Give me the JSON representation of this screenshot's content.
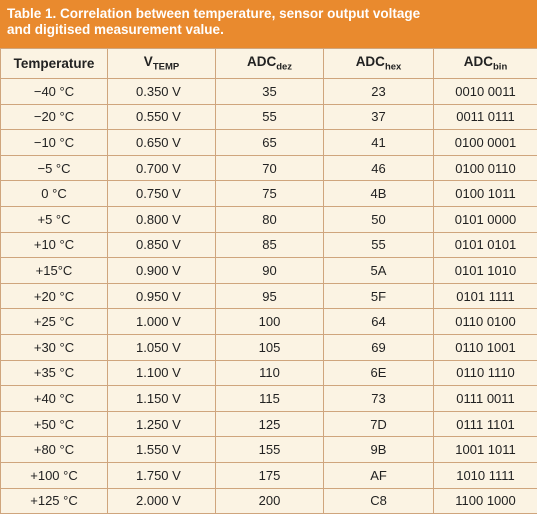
{
  "table": {
    "title": [
      "Table 1. Correlation between temperature, sensor output voltage",
      "and digitised measurement value."
    ],
    "header": [
      {
        "text": "Temperature"
      },
      {
        "text": "V",
        "sub": "TEMP"
      },
      {
        "text": "ADC",
        "sub": "dez"
      },
      {
        "text": "ADC",
        "sub": "hex"
      },
      {
        "text": "ADC",
        "sub": "bin"
      }
    ],
    "rows": [
      [
        "−40 °C",
        "0.350 V",
        "35",
        "23",
        "0010 0011"
      ],
      [
        "−20 °C",
        "0.550 V",
        "55",
        "37",
        "0011 0111"
      ],
      [
        "−10 °C",
        "0.650 V",
        "65",
        "41",
        "0100 0001"
      ],
      [
        "−5 °C",
        "0.700 V",
        "70",
        "46",
        "0100 0110"
      ],
      [
        "0 °C",
        "0.750 V",
        "75",
        "4B",
        "0100 1011"
      ],
      [
        "+5 °C",
        "0.800 V",
        "80",
        "50",
        "0101 0000"
      ],
      [
        "+10 °C",
        "0.850 V",
        "85",
        "55",
        "0101 0101"
      ],
      [
        "+15°C",
        "0.900 V",
        "90",
        "5A",
        "0101 1010"
      ],
      [
        "+20 °C",
        "0.950 V",
        "95",
        "5F",
        "0101 1111"
      ],
      [
        "+25 °C",
        "1.000 V",
        "100",
        "64",
        "0110 0100"
      ],
      [
        "+30 °C",
        "1.050 V",
        "105",
        "69",
        "0110 1001"
      ],
      [
        "+35 °C",
        "1.100 V",
        "110",
        "6E",
        "0110 1110"
      ],
      [
        "+40 °C",
        "1.150 V",
        "115",
        "73",
        "0111 0011"
      ],
      [
        "+50 °C",
        "1.250 V",
        "125",
        "7D",
        "0111 1101"
      ],
      [
        "+80 °C",
        "1.550 V",
        "155",
        "9B",
        "1001 1011"
      ],
      [
        "+100 °C",
        "1.750 V",
        "175",
        "AF",
        "1010 1111"
      ],
      [
        "+125 °C",
        "2.000 V",
        "200",
        "C8",
        "1100 1000"
      ]
    ]
  }
}
